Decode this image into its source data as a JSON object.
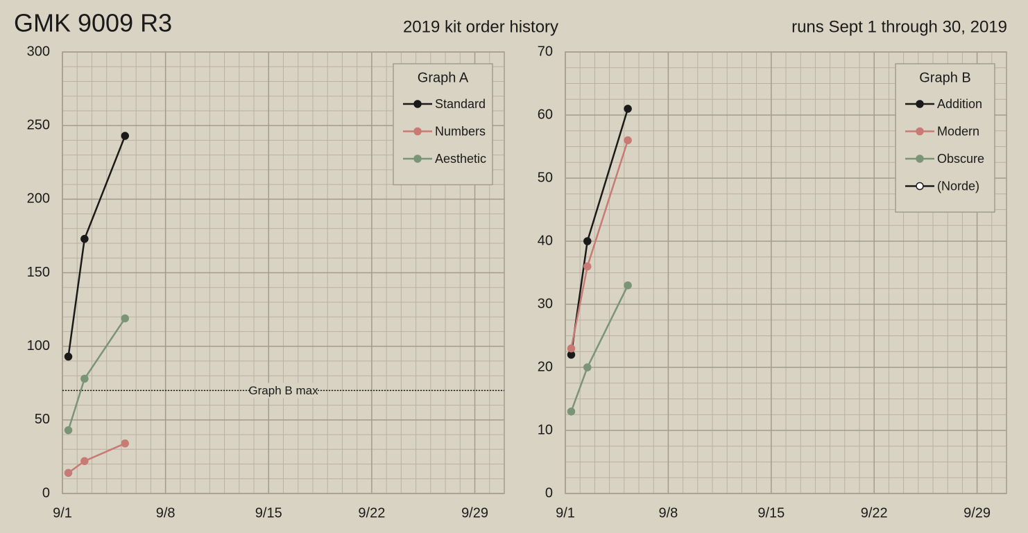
{
  "page": {
    "title": "GMK 9009 R3",
    "subtitle": "2019 kit order history",
    "note": "runs Sept 1 through 30, 2019"
  },
  "chart_data": [
    {
      "type": "line",
      "legend_title": "Graph A",
      "legend": "top-right",
      "grid": true,
      "minor_grid": {
        "x": 7,
        "y": 5
      },
      "xlim": [
        1,
        31
      ],
      "xticks": [
        {
          "value": 1,
          "label": "9/1"
        },
        {
          "value": 8,
          "label": "9/8"
        },
        {
          "value": 15,
          "label": "9/15"
        },
        {
          "value": 22,
          "label": "9/22"
        },
        {
          "value": 29,
          "label": "9/29"
        }
      ],
      "ylim": [
        0,
        300
      ],
      "yticks": [
        0,
        50,
        100,
        150,
        200,
        250,
        300
      ],
      "x": [
        1.4,
        2.5,
        5.25
      ],
      "series": [
        {
          "name": "Standard",
          "color": "#1a1a1a",
          "values": [
            93,
            173,
            243
          ]
        },
        {
          "name": "Numbers",
          "color": "#c87a74",
          "values": [
            14,
            22,
            34
          ]
        },
        {
          "name": "Aesthetic",
          "color": "#7a9478",
          "values": [
            43,
            78,
            119
          ]
        }
      ],
      "annotations": [
        {
          "text": "Graph B max",
          "value": 70
        }
      ]
    },
    {
      "type": "line",
      "legend_title": "Graph B",
      "legend": "top-right",
      "grid": true,
      "minor_grid": {
        "x": 7,
        "y": 4
      },
      "xlim": [
        1,
        31
      ],
      "xticks": [
        {
          "value": 1,
          "label": "9/1"
        },
        {
          "value": 8,
          "label": "9/8"
        },
        {
          "value": 15,
          "label": "9/15"
        },
        {
          "value": 22,
          "label": "9/22"
        },
        {
          "value": 29,
          "label": "9/29"
        }
      ],
      "ylim": [
        0,
        70
      ],
      "yticks": [
        0,
        10,
        20,
        30,
        40,
        50,
        60,
        70
      ],
      "x": [
        1.4,
        2.5,
        5.25
      ],
      "series": [
        {
          "name": "Addition",
          "color": "#1a1a1a",
          "values": [
            22,
            40,
            61
          ]
        },
        {
          "name": "Modern",
          "color": "#c87a74",
          "values": [
            23,
            36,
            56
          ]
        },
        {
          "name": "Obscure",
          "color": "#7a9478",
          "values": [
            13,
            20,
            33
          ]
        },
        {
          "name": "(Norde)",
          "color": "#1a1a1a",
          "hollow": true,
          "values": [
            null,
            null,
            null
          ]
        }
      ]
    }
  ]
}
